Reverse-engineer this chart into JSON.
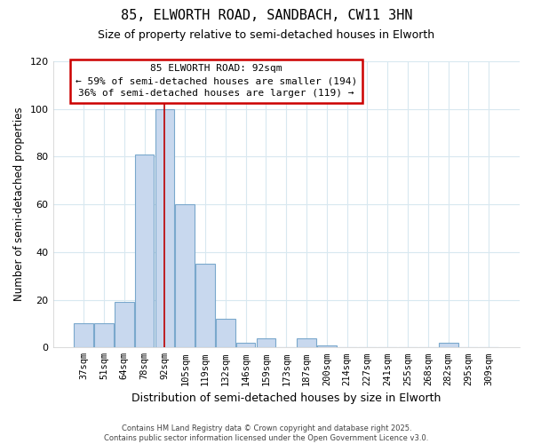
{
  "title1": "85, ELWORTH ROAD, SANDBACH, CW11 3HN",
  "title2": "Size of property relative to semi-detached houses in Elworth",
  "xlabel": "Distribution of semi-detached houses by size in Elworth",
  "ylabel": "Number of semi-detached properties",
  "categories": [
    "37sqm",
    "51sqm",
    "64sqm",
    "78sqm",
    "92sqm",
    "105sqm",
    "119sqm",
    "132sqm",
    "146sqm",
    "159sqm",
    "173sqm",
    "187sqm",
    "200sqm",
    "214sqm",
    "227sqm",
    "241sqm",
    "255sqm",
    "268sqm",
    "282sqm",
    "295sqm",
    "309sqm"
  ],
  "values": [
    10,
    10,
    19,
    81,
    100,
    60,
    35,
    12,
    2,
    4,
    0,
    4,
    1,
    0,
    0,
    0,
    0,
    0,
    2,
    0,
    0
  ],
  "bar_color": "#c8d8ee",
  "bar_edge_color": "#7aa8cc",
  "marker_index": 4,
  "marker_color": "#bb0000",
  "annotation_title": "85 ELWORTH ROAD: 92sqm",
  "annotation_line1": "← 59% of semi-detached houses are smaller (194)",
  "annotation_line2": "36% of semi-detached houses are larger (119) →",
  "annotation_border_color": "#cc0000",
  "ylim": [
    0,
    120
  ],
  "yticks": [
    0,
    20,
    40,
    60,
    80,
    100,
    120
  ],
  "footer1": "Contains HM Land Registry data © Crown copyright and database right 2025.",
  "footer2": "Contains public sector information licensed under the Open Government Licence v3.0.",
  "bg_color": "#ffffff",
  "plot_bg_color": "#ffffff",
  "grid_color": "#d8e8f0"
}
